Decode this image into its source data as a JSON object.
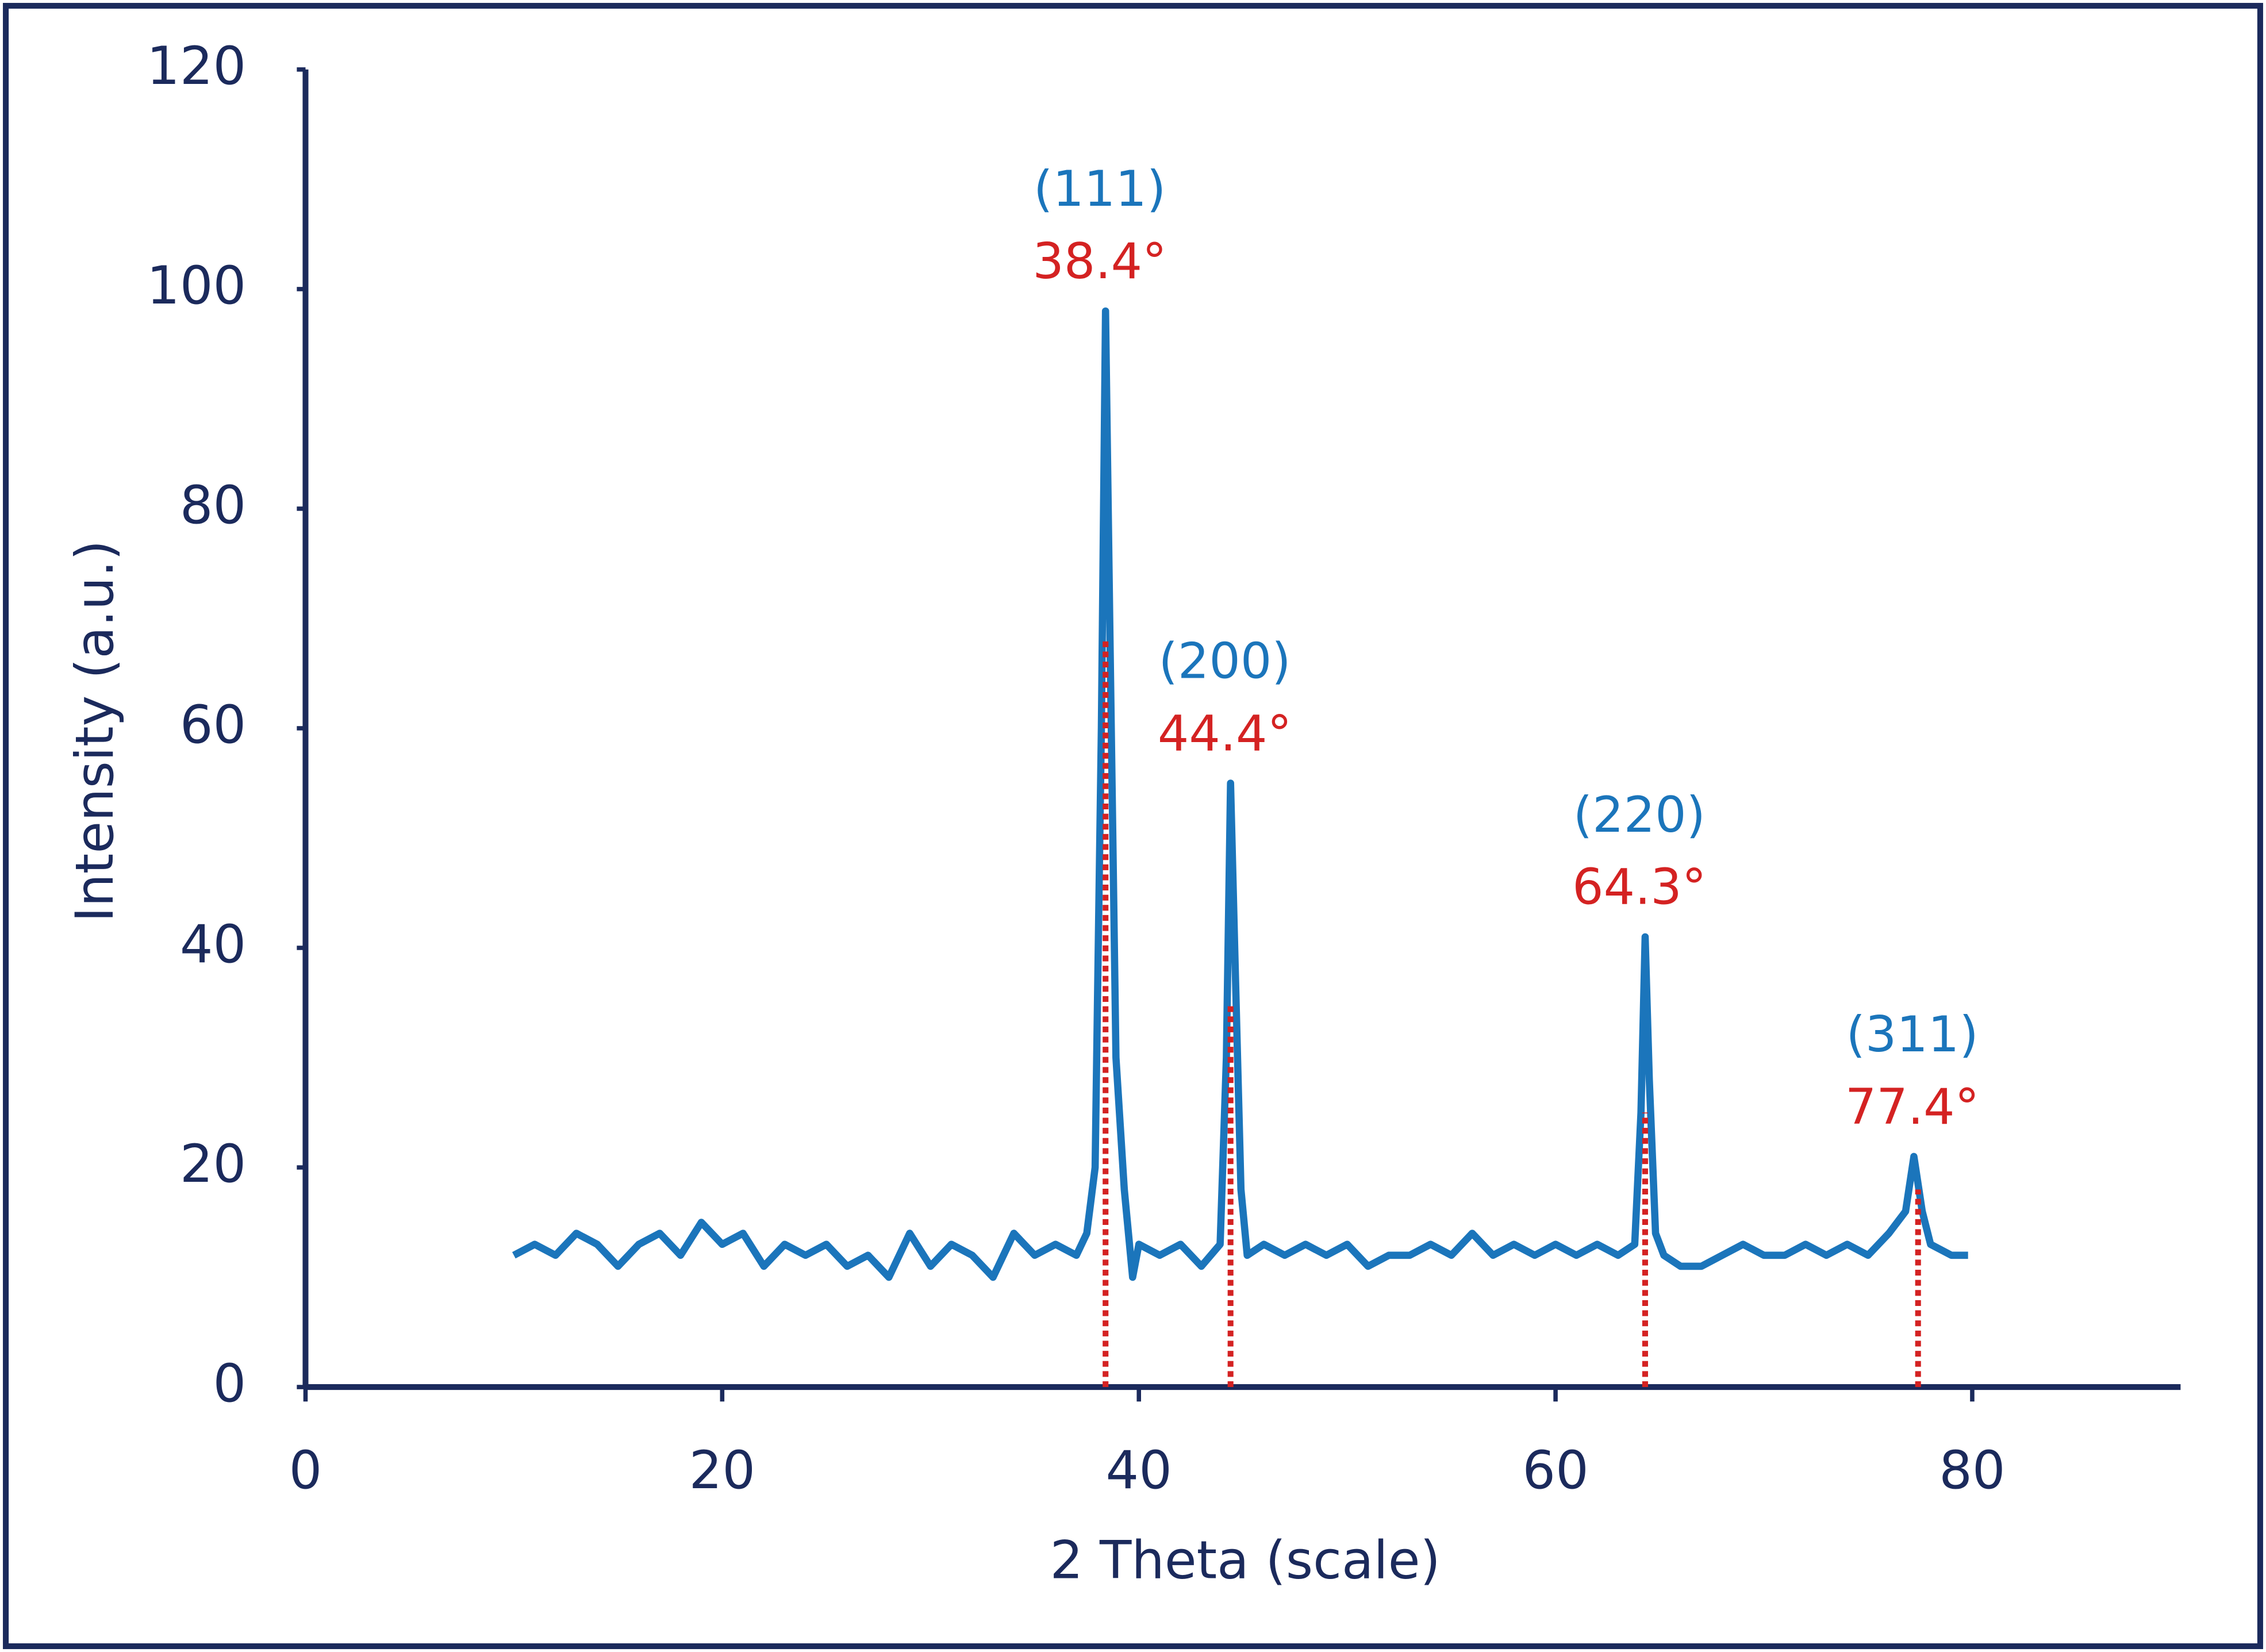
{
  "chart_data": {
    "type": "line",
    "xlabel": "2 Theta (scale)",
    "ylabel": "Intensity (a.u.)",
    "x": [
      10,
      11,
      12,
      13,
      14,
      15,
      16,
      17,
      18,
      19,
      20,
      21,
      22,
      23,
      24,
      25,
      26,
      27,
      28,
      29,
      30,
      31,
      32,
      33,
      34,
      35,
      36,
      37,
      37.5,
      37.9,
      38.2,
      38.4,
      38.6,
      38.9,
      39.3,
      39.7,
      40,
      41,
      42,
      43,
      43.9,
      44.2,
      44.4,
      44.6,
      44.9,
      45.2,
      46,
      47,
      48,
      49,
      50,
      51,
      52,
      53,
      54,
      55,
      56,
      57,
      58,
      59,
      60,
      61,
      62,
      63,
      63.8,
      64.1,
      64.3,
      64.5,
      64.8,
      65.2,
      66,
      67,
      68,
      69,
      70,
      71,
      72,
      73,
      74,
      75,
      76,
      76.8,
      77.2,
      77.6,
      78,
      79,
      79.8
    ],
    "series": [
      {
        "color": "#1b75bb",
        "values": [
          12,
          13,
          12,
          14,
          13,
          11,
          13,
          14,
          12,
          15,
          13,
          14,
          11,
          13,
          12,
          13,
          11,
          12,
          10,
          14,
          11,
          13,
          12,
          10,
          14,
          12,
          13,
          12,
          14,
          20,
          60,
          98,
          70,
          30,
          18,
          10,
          13,
          12,
          13,
          11,
          13,
          30,
          55,
          40,
          18,
          12,
          13,
          12,
          13,
          12,
          13,
          11,
          12,
          12,
          13,
          12,
          14,
          12,
          13,
          12,
          13,
          12,
          13,
          12,
          13,
          25,
          41,
          28,
          14,
          12,
          11,
          11,
          12,
          13,
          12,
          12,
          13,
          12,
          13,
          12,
          14,
          16,
          21,
          16,
          13,
          12,
          12
        ]
      }
    ],
    "annotations": [
      {
        "hkl": "(111)",
        "label": "38.4°",
        "x": 38.4,
        "y": 68
      },
      {
        "hkl": "(200)",
        "label": "44.4°",
        "x": 44.4,
        "y": 35
      },
      {
        "hkl": "(220)",
        "label": "64.3°",
        "x": 64.3,
        "y": 25
      },
      {
        "hkl": "(311)",
        "label": "77.4°",
        "x": 77.4,
        "y": 18
      }
    ],
    "annotation_colors": {
      "hkl": "#1b75bb",
      "label": "#d42222"
    },
    "xlim": [
      0,
      90
    ],
    "xticks": [
      0,
      20,
      40,
      60,
      80
    ],
    "ylim": [
      0,
      120
    ],
    "yticks": [
      0,
      20,
      40,
      60,
      80,
      100,
      120
    ],
    "grid": false
  }
}
